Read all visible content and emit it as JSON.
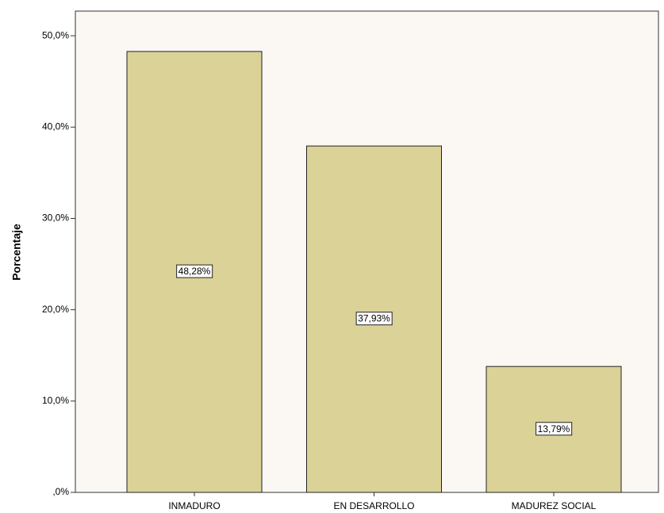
{
  "chart_data": {
    "type": "bar",
    "y_label": "Porcentaje",
    "categories": [
      "INMADURO",
      "EN DESARROLLO",
      "MADUREZ SOCIAL"
    ],
    "values": [
      48.28,
      37.93,
      13.79
    ],
    "value_labels": [
      "48,28%",
      "37,93%",
      "13,79%"
    ],
    "color": "#d3cb86",
    "ylim": [
      0,
      52.7
    ],
    "yticks": [
      {
        "value": 0,
        "label": ",0%"
      },
      {
        "value": 10,
        "label": "10,0%"
      },
      {
        "value": 20,
        "label": "20,0%"
      },
      {
        "value": 30,
        "label": "30,0%"
      },
      {
        "value": 40,
        "label": "40,0%"
      },
      {
        "value": 50,
        "label": "50,0%"
      }
    ]
  }
}
